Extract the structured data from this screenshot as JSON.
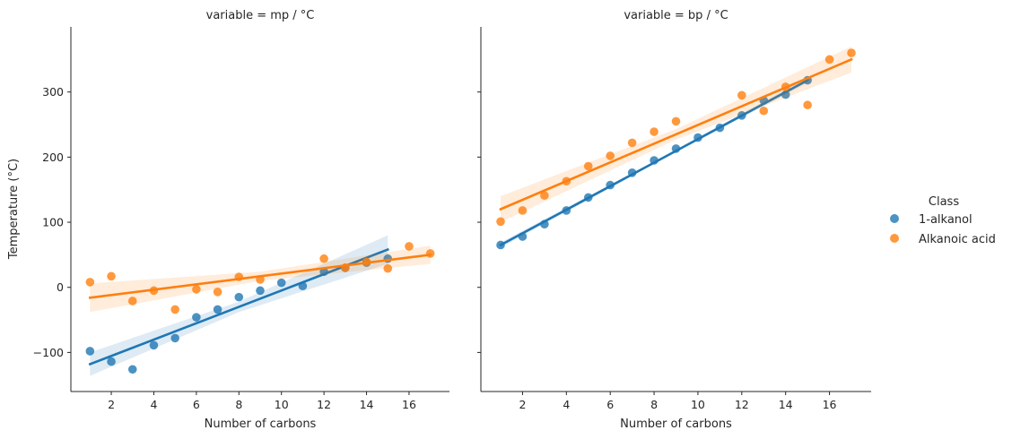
{
  "chart_data": {
    "type": "scatter",
    "ylabel": "Temperature (°C)",
    "ylim": [
      -160,
      400
    ],
    "y_ticks": [
      -100,
      0,
      100,
      200,
      300
    ],
    "y_tick_labels": [
      "−100",
      "0",
      "100",
      "200",
      "300"
    ],
    "xlim": [
      0.1,
      17.9
    ],
    "x_ticks": [
      2,
      4,
      6,
      8,
      10,
      12,
      14,
      16
    ],
    "x_tick_labels": [
      "2",
      "4",
      "6",
      "8",
      "10",
      "12",
      "14",
      "16"
    ],
    "grid": false,
    "legend": {
      "title": "Class",
      "position": "right",
      "entries": [
        {
          "label": "1-alkanol",
          "color": "#1f77b4"
        },
        {
          "label": "Alkanoic acid",
          "color": "#ff7f0e"
        }
      ]
    },
    "panels": [
      {
        "title": "variable = mp / °C",
        "xlabel": "Number of carbons",
        "series": [
          {
            "name": "1-alkanol",
            "color": "#1f77b4",
            "x": [
              1,
              2,
              3,
              4,
              5,
              6,
              7,
              8,
              9,
              10,
              11,
              12,
              13,
              14,
              15
            ],
            "y": [
              -98,
              -114,
              -126,
              -89,
              -78,
              -46,
              -34,
              -15,
              -5,
              7,
              2,
              24,
              30,
              38,
              44
            ],
            "fit_line": [
              [
                1,
                -118
              ],
              [
                15,
                58
              ]
            ],
            "ci_halfwidth": [
              18,
              8,
              22
            ]
          },
          {
            "name": "Alkanoic acid",
            "color": "#ff7f0e",
            "x": [
              1,
              2,
              3,
              4,
              5,
              6,
              7,
              8,
              9,
              12,
              13,
              14,
              15,
              16,
              17
            ],
            "y": [
              8,
              17,
              -21,
              -5,
              -34,
              -3,
              -7,
              16,
              12,
              44,
              30,
              39,
              29,
              63,
              52
            ],
            "fit_line": [
              [
                1,
                -16
              ],
              [
                17,
                50
              ]
            ],
            "ci_halfwidth": [
              22,
              7,
              14
            ]
          }
        ]
      },
      {
        "title": "variable = bp / °C",
        "xlabel": "Number of carbons",
        "series": [
          {
            "name": "1-alkanol",
            "color": "#1f77b4",
            "x": [
              1,
              2,
              3,
              4,
              5,
              6,
              7,
              8,
              9,
              10,
              11,
              12,
              13,
              14,
              15
            ],
            "y": [
              65,
              78,
              97,
              118,
              138,
              157,
              176,
              195,
              213,
              230,
              245,
              264,
              287,
              296,
              318
            ],
            "fit_line": [
              [
                1,
                65
              ],
              [
                15,
                318
              ]
            ],
            "ci_halfwidth": [
              4,
              2,
              4
            ]
          },
          {
            "name": "Alkanoic acid",
            "color": "#ff7f0e",
            "x": [
              1,
              2,
              3,
              4,
              5,
              6,
              7,
              8,
              9,
              12,
              13,
              14,
              15,
              16,
              17
            ],
            "y": [
              101,
              118,
              141,
              163,
              186,
              202,
              222,
              239,
              255,
              295,
              271,
              308,
              280,
              350,
              360
            ],
            "fit_line": [
              [
                1,
                120
              ],
              [
                17,
                350
              ]
            ],
            "ci_halfwidth": [
              20,
              8,
              20
            ]
          }
        ]
      }
    ]
  }
}
